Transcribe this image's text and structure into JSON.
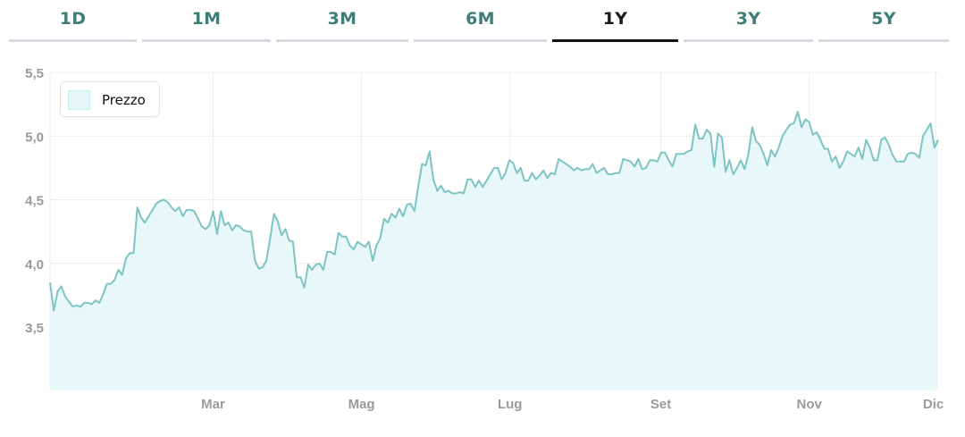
{
  "tabs": [
    {
      "label": "1D",
      "active": false
    },
    {
      "label": "1M",
      "active": false
    },
    {
      "label": "3M",
      "active": false
    },
    {
      "label": "6M",
      "active": false
    },
    {
      "label": "1Y",
      "active": true
    },
    {
      "label": "3Y",
      "active": false
    },
    {
      "label": "5Y",
      "active": false
    }
  ],
  "colors": {
    "line": "#7ec4c4",
    "fill": "#e8f7f7",
    "grid": "#ececec",
    "axis_text": "#9a9a9a",
    "tab_text": "#3f7d78",
    "tab_active": "#111111"
  },
  "chart_data": {
    "type": "area",
    "legend": {
      "label": "Prezzo",
      "placement": "top-left"
    },
    "ylim": [
      3.0,
      5.5
    ],
    "yticks": [
      3.5,
      4.0,
      4.5,
      5.0,
      5.5
    ],
    "ytick_labels": [
      "3,5",
      "4,0",
      "4,5",
      "5,0",
      "5,5"
    ],
    "xticks": [
      {
        "label": "Mar",
        "day": 67
      },
      {
        "label": "Mag",
        "day": 128
      },
      {
        "label": "Lug",
        "day": 189
      },
      {
        "label": "Set",
        "day": 251
      },
      {
        "label": "Nov",
        "day": 312
      },
      {
        "label": "Dic",
        "day": 364
      }
    ],
    "xlim_day": [
      0,
      365
    ],
    "grid": true,
    "series": [
      {
        "name": "Prezzo",
        "values": [
          3.85,
          3.63,
          3.78,
          3.82,
          3.74,
          3.7,
          3.66,
          3.67,
          3.66,
          3.69,
          3.69,
          3.68,
          3.71,
          3.69,
          3.76,
          3.84,
          3.84,
          3.87,
          3.95,
          3.91,
          4.04,
          4.08,
          4.08,
          4.44,
          4.36,
          4.32,
          4.37,
          4.42,
          4.47,
          4.49,
          4.5,
          4.48,
          4.44,
          4.41,
          4.44,
          4.37,
          4.42,
          4.42,
          4.41,
          4.35,
          4.29,
          4.27,
          4.3,
          4.41,
          4.23,
          4.41,
          4.3,
          4.32,
          4.26,
          4.3,
          4.29,
          4.26,
          4.25,
          4.25,
          4.02,
          3.96,
          3.97,
          4.02,
          4.2,
          4.39,
          4.33,
          4.22,
          4.27,
          4.18,
          4.17,
          3.89,
          3.89,
          3.81,
          3.99,
          3.95,
          3.99,
          4.0,
          3.95,
          4.09,
          4.09,
          4.07,
          4.24,
          4.21,
          4.21,
          4.14,
          4.11,
          4.17,
          4.15,
          4.13,
          4.17,
          4.02,
          4.14,
          4.2,
          4.35,
          4.32,
          4.39,
          4.36,
          4.43,
          4.37,
          4.46,
          4.47,
          4.41,
          4.6,
          4.78,
          4.77,
          4.88,
          4.66,
          4.57,
          4.61,
          4.56,
          4.57,
          4.55,
          4.55,
          4.56,
          4.55,
          4.66,
          4.66,
          4.6,
          4.65,
          4.6,
          4.65,
          4.7,
          4.75,
          4.75,
          4.66,
          4.71,
          4.81,
          4.79,
          4.71,
          4.75,
          4.65,
          4.65,
          4.71,
          4.66,
          4.69,
          4.73,
          4.67,
          4.71,
          4.7,
          4.82,
          4.8,
          4.78,
          4.76,
          4.73,
          4.75,
          4.73,
          4.74,
          4.74,
          4.78,
          4.71,
          4.73,
          4.75,
          4.7,
          4.7,
          4.71,
          4.71,
          4.82,
          4.81,
          4.8,
          4.76,
          4.82,
          4.74,
          4.75,
          4.81,
          4.81,
          4.8,
          4.87,
          4.87,
          4.81,
          4.76,
          4.86,
          4.86,
          4.86,
          4.88,
          4.89,
          5.09,
          4.98,
          4.98,
          5.05,
          5.02,
          4.76,
          5.02,
          4.99,
          4.72,
          4.81,
          4.7,
          4.75,
          4.81,
          4.74,
          4.86,
          5.07,
          4.96,
          4.93,
          4.86,
          4.77,
          4.89,
          4.84,
          4.91,
          5.0,
          5.05,
          5.09,
          5.1,
          5.19,
          5.07,
          5.13,
          5.11,
          5.01,
          5.03,
          4.97,
          4.9,
          4.9,
          4.8,
          4.84,
          4.75,
          4.8,
          4.88,
          4.86,
          4.84,
          4.91,
          4.82,
          4.97,
          4.91,
          4.81,
          4.81,
          4.97,
          4.99,
          4.93,
          4.85,
          4.8,
          4.8,
          4.8,
          4.86,
          4.87,
          4.86,
          4.83,
          5.0,
          5.05,
          5.1,
          4.91,
          4.97
        ]
      }
    ]
  }
}
